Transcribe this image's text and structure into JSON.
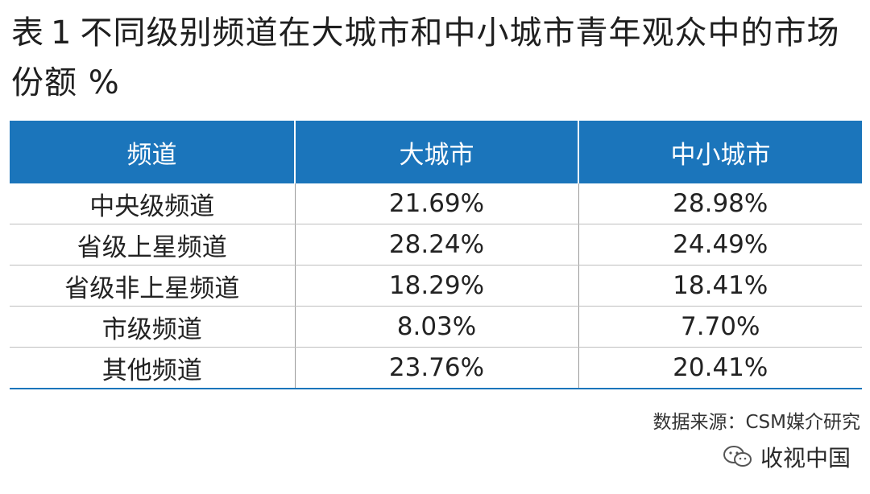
{
  "title": {
    "prefix": "表",
    "number": "1",
    "text": "不同级别频道在大城市和中小城市青年观众中的市场份额 %"
  },
  "table": {
    "headers": [
      "频道",
      "大城市",
      "中小城市"
    ],
    "rows": [
      [
        "中央级频道",
        "21.69%",
        "28.98%"
      ],
      [
        "省级上星频道",
        "28.24%",
        "24.49%"
      ],
      [
        "省级非上星频道",
        "18.29%",
        "18.41%"
      ],
      [
        "市级频道",
        "8.03%",
        "7.70%"
      ],
      [
        "其他频道",
        "23.76%",
        "20.41%"
      ]
    ]
  },
  "source": "数据来源：CSM媒介研究",
  "watermark": {
    "icon": "wechat-icon",
    "text": "收视中国"
  },
  "colors": {
    "header_bg": "#1b75bb",
    "header_text": "#ffffff"
  }
}
